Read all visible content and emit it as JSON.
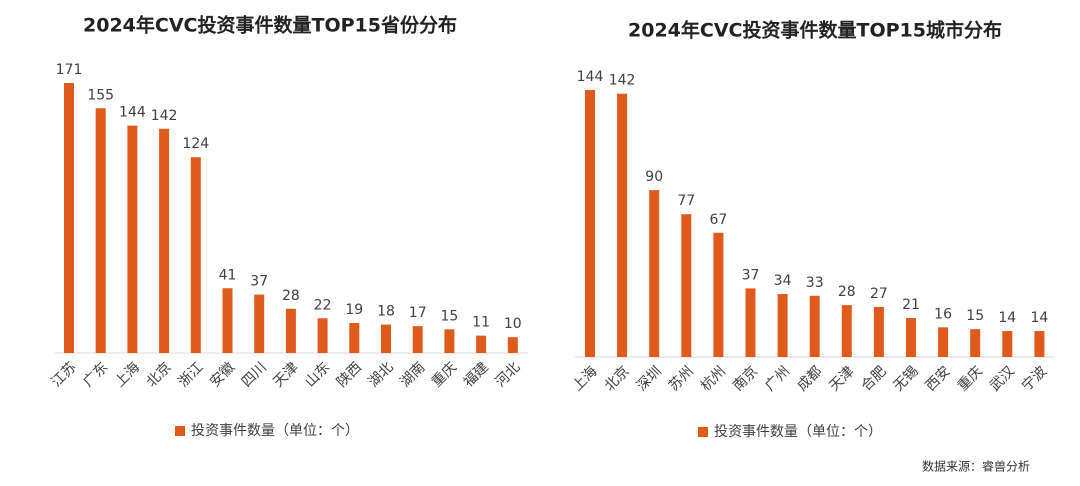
{
  "chart_data": [
    {
      "type": "bar",
      "title": "2024年CVC投资事件数量TOP15省份分布",
      "categories": [
        "江苏",
        "广东",
        "上海",
        "北京",
        "浙江",
        "安徽",
        "四川",
        "天津",
        "山东",
        "陕西",
        "湖北",
        "湖南",
        "重庆",
        "福建",
        "河北"
      ],
      "series": [
        {
          "name": "投资事件数量（单位：个）",
          "color": "#e05a1c",
          "values": [
            171,
            155,
            144,
            142,
            124,
            41,
            37,
            28,
            22,
            19,
            18,
            17,
            15,
            11,
            10
          ]
        }
      ]
    },
    {
      "type": "bar",
      "title": "2024年CVC投资事件数量TOP15城市分布",
      "categories": [
        "上海",
        "北京",
        "深圳",
        "苏州",
        "杭州",
        "南京",
        "广州",
        "成都",
        "天津",
        "合肥",
        "无锡",
        "西安",
        "重庆",
        "武汉",
        "宁波"
      ],
      "series": [
        {
          "name": "投资事件数量（单位：个）",
          "color": "#e05a1c",
          "values": [
            144,
            142,
            90,
            77,
            67,
            37,
            34,
            33,
            28,
            27,
            21,
            16,
            15,
            14,
            14
          ]
        }
      ]
    }
  ],
  "source": "数据来源：睿兽分析"
}
